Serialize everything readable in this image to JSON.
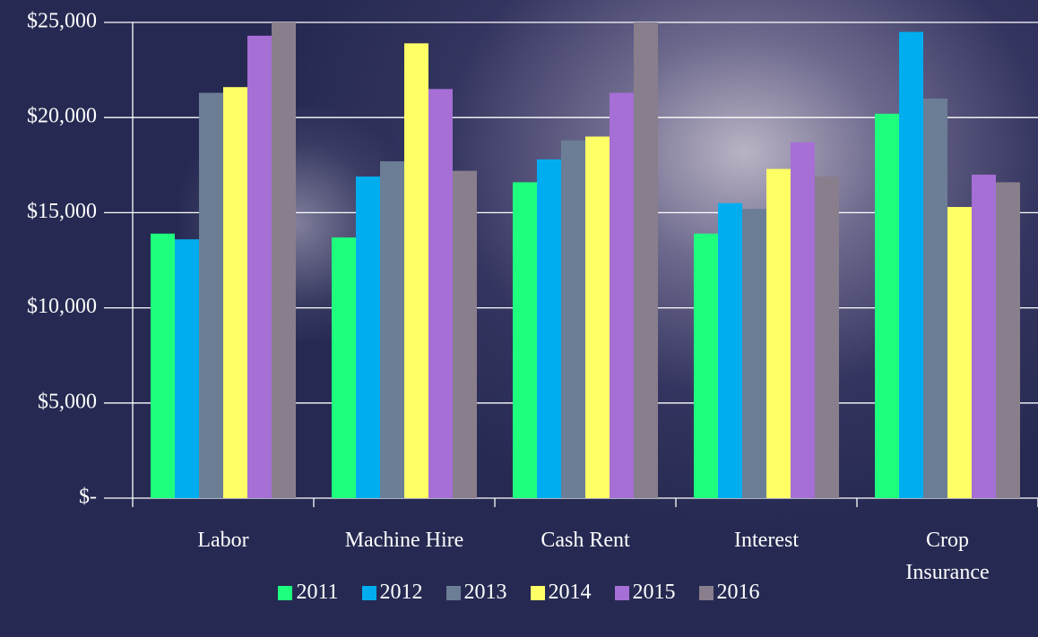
{
  "chart_data": {
    "type": "bar",
    "categories": [
      "Labor",
      "Machine Hire",
      "Cash Rent",
      "Interest",
      "Crop Insurance"
    ],
    "series": [
      {
        "name": "2011",
        "color": "#1eff7e",
        "values": [
          13900,
          13700,
          16600,
          13900,
          20200
        ]
      },
      {
        "name": "2012",
        "color": "#00aef0",
        "values": [
          13600,
          16900,
          17800,
          15500,
          24500
        ]
      },
      {
        "name": "2013",
        "color": "#6c7d96",
        "values": [
          21300,
          17700,
          18800,
          15200,
          21000
        ]
      },
      {
        "name": "2014",
        "color": "#ffff66",
        "values": [
          21600,
          23900,
          19000,
          17300,
          15300
        ]
      },
      {
        "name": "2015",
        "color": "#a56fd5",
        "values": [
          24300,
          21500,
          21300,
          18700,
          17000
        ]
      },
      {
        "name": "2016",
        "color": "#897e8c",
        "values": [
          25000,
          17200,
          25000,
          16900,
          16600
        ]
      }
    ],
    "ylim": [
      0,
      25000
    ],
    "yticks": [
      {
        "value": 0,
        "label": "$-"
      },
      {
        "value": 5000,
        "label": "$5,000"
      },
      {
        "value": 10000,
        "label": "$10,000"
      },
      {
        "value": 15000,
        "label": "$15,000"
      },
      {
        "value": 20000,
        "label": "$20,000"
      },
      {
        "value": 25000,
        "label": "$25,000"
      }
    ],
    "grid": true
  }
}
